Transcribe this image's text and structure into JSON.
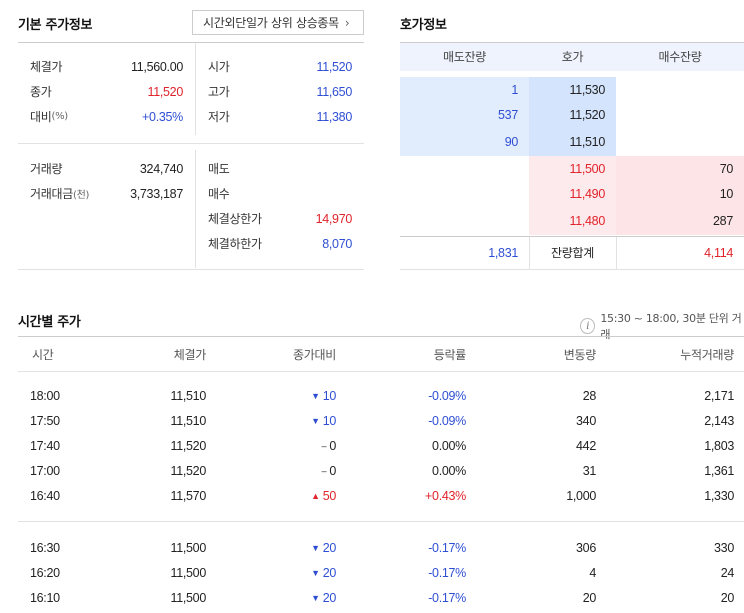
{
  "basic": {
    "title": "기본 주가정보",
    "overtime_button": "시간외단일가 상위 상승종목",
    "chevron": "›",
    "left1": [
      {
        "label": "체결가",
        "unit": "",
        "value": "11,560.00",
        "color": "black"
      },
      {
        "label": "종가",
        "unit": "",
        "value": "11,520",
        "color": "red"
      },
      {
        "label": "대비",
        "unit": "(%)",
        "value": "+0.35%",
        "color": "blue"
      }
    ],
    "right1": [
      {
        "label": "시가",
        "value": "11,520",
        "color": "blue"
      },
      {
        "label": "고가",
        "value": "11,650",
        "color": "blue"
      },
      {
        "label": "저가",
        "value": "11,380",
        "color": "blue"
      }
    ],
    "left2": [
      {
        "label": "거래량",
        "unit": "",
        "value": "324,740"
      },
      {
        "label": "거래대금",
        "unit": "(천)",
        "value": "3,733,187"
      }
    ],
    "right2": [
      {
        "label": "매도",
        "value": "",
        "color": "black"
      },
      {
        "label": "매수",
        "value": "",
        "color": "black"
      },
      {
        "label": "체결상한가",
        "value": "14,970",
        "color": "red"
      },
      {
        "label": "체결하한가",
        "value": "8,070",
        "color": "blue"
      }
    ]
  },
  "orderbook": {
    "title": "호가정보",
    "headers": [
      "매도잔량",
      "호가",
      "매수잔량"
    ],
    "ask_rows": [
      {
        "qty": "1",
        "price": "11,530"
      },
      {
        "qty": "537",
        "price": "11,520"
      },
      {
        "qty": "90",
        "price": "11,510"
      }
    ],
    "bid_rows": [
      {
        "price": "11,500",
        "qty": "70"
      },
      {
        "price": "11,490",
        "qty": "10"
      },
      {
        "price": "11,480",
        "qty": "287"
      }
    ],
    "total_ask": "1,831",
    "total_label": "잔량합계",
    "total_bid": "4,114"
  },
  "timetable": {
    "title": "시간별 주가",
    "info_icon": "i",
    "note": "15:30 ~ 18:00, 30분 단위 거래",
    "headers": [
      "시간",
      "체결가",
      "종가대비",
      "등락률",
      "변동량",
      "누적거래량"
    ],
    "group1": [
      {
        "time": "18:00",
        "price": "11,510",
        "dir": "down",
        "diff": "10",
        "rate": "-0.09%",
        "vol": "28",
        "cum": "2,171"
      },
      {
        "time": "17:50",
        "price": "11,510",
        "dir": "down",
        "diff": "10",
        "rate": "-0.09%",
        "vol": "340",
        "cum": "2,143"
      },
      {
        "time": "17:40",
        "price": "11,520",
        "dir": "flat",
        "diff": "0",
        "rate": "0.00%",
        "vol": "442",
        "cum": "1,803"
      },
      {
        "time": "17:00",
        "price": "11,520",
        "dir": "flat",
        "diff": "0",
        "rate": "0.00%",
        "vol": "31",
        "cum": "1,361"
      },
      {
        "time": "16:40",
        "price": "11,570",
        "dir": "up",
        "diff": "50",
        "rate": "+0.43%",
        "vol": "1,000",
        "cum": "1,330"
      }
    ],
    "group2": [
      {
        "time": "16:30",
        "price": "11,500",
        "dir": "down",
        "diff": "20",
        "rate": "-0.17%",
        "vol": "306",
        "cum": "330"
      },
      {
        "time": "16:20",
        "price": "11,500",
        "dir": "down",
        "diff": "20",
        "rate": "-0.17%",
        "vol": "4",
        "cum": "24"
      },
      {
        "time": "16:10",
        "price": "11,500",
        "dir": "down",
        "diff": "20",
        "rate": "-0.17%",
        "vol": "20",
        "cum": "20"
      }
    ]
  },
  "colors": {
    "up": "#e0232b",
    "down": "#2f4fd3",
    "flat": "#222222"
  }
}
